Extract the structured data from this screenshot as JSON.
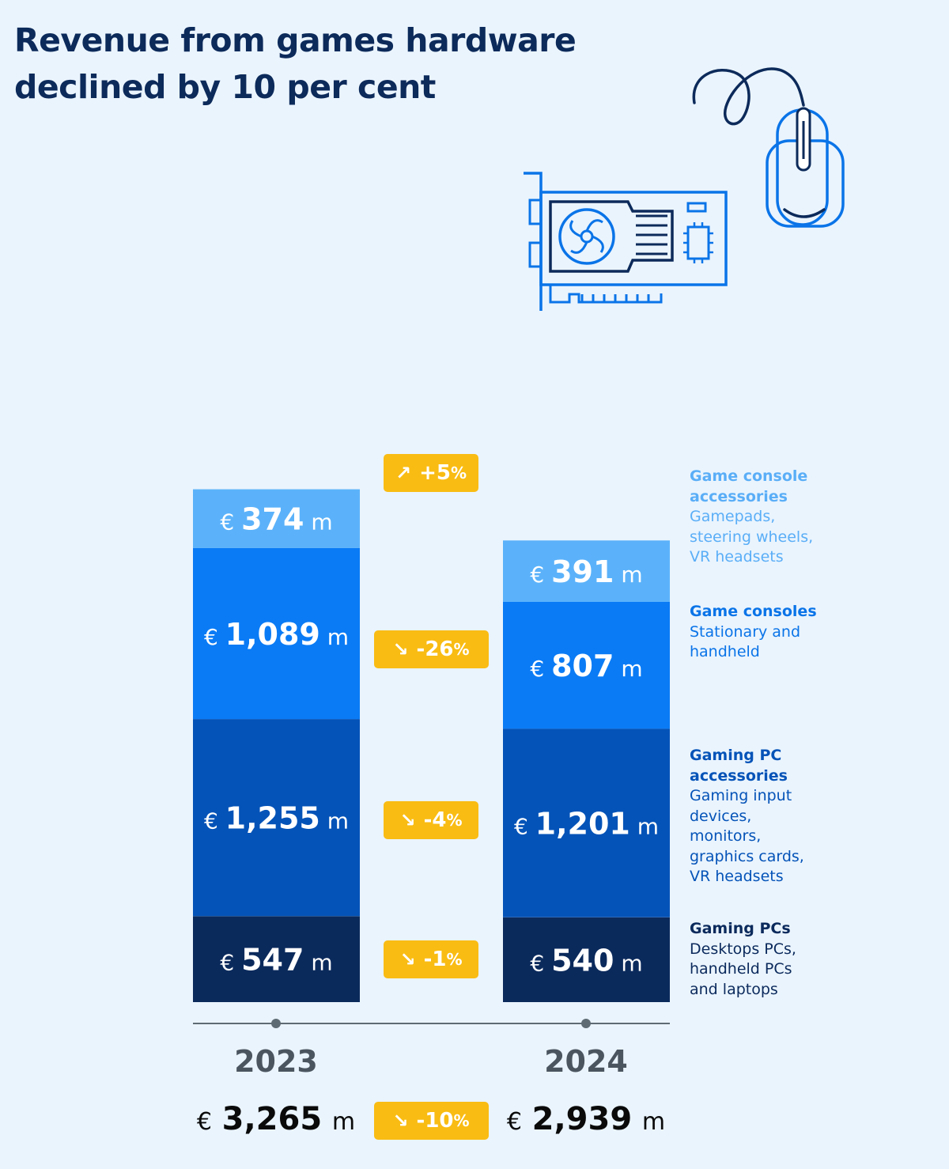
{
  "title": {
    "line1": "Revenue from games hardware",
    "line2": "declined by 10 per cent"
  },
  "icons": [
    "graphics-card-icon",
    "computer-mouse-icon"
  ],
  "colors": {
    "background": "#eaf4fd",
    "title": "#0c2a5a",
    "badge": "#f9bc13",
    "axis": "#5f6b73"
  },
  "chart_data": {
    "type": "bar",
    "stacked": true,
    "categories": [
      "2023",
      "2024"
    ],
    "currency": "€",
    "unit": "m",
    "series": [
      {
        "name": "Gaming PCs",
        "description": "Desktops PCs,\nhandheld PCs\nand laptops",
        "color": "#0b2a5c",
        "legend_color": "#0b2a5c",
        "values": [
          547,
          540
        ],
        "labels": [
          "547",
          "540"
        ],
        "change": {
          "direction": "down",
          "value": "-1",
          "unit": "%"
        }
      },
      {
        "name": "Gaming PC accessories",
        "description": "Gaming input\ndevices,\nmonitors,\ngraphics cards,\nVR headsets",
        "color": "#0453b8",
        "legend_color": "#0453b8",
        "values": [
          1255,
          1201
        ],
        "labels": [
          "1,255",
          "1,201"
        ],
        "change": {
          "direction": "down",
          "value": "-4",
          "unit": "%"
        }
      },
      {
        "name": "Game consoles",
        "description": "Stationary and\nhandheld",
        "color": "#0a7bf5",
        "legend_color": "#0a74e8",
        "values": [
          1089,
          807
        ],
        "labels": [
          "1,089",
          "807"
        ],
        "change": {
          "direction": "down",
          "value": "-26",
          "unit": "%"
        }
      },
      {
        "name": "Game console accessories",
        "description": "Gamepads,\nsteering wheels,\nVR headsets",
        "color": "#5bb2fa",
        "legend_color": "#5aaef7",
        "values": [
          374,
          391
        ],
        "labels": [
          "374",
          "391"
        ],
        "change": {
          "direction": "up",
          "value": "+5",
          "unit": "%"
        }
      }
    ],
    "totals": {
      "values": [
        3265,
        2939
      ],
      "labels": [
        "3,265",
        "2,939"
      ],
      "change": {
        "direction": "down",
        "value": "-10",
        "unit": "%"
      }
    }
  }
}
